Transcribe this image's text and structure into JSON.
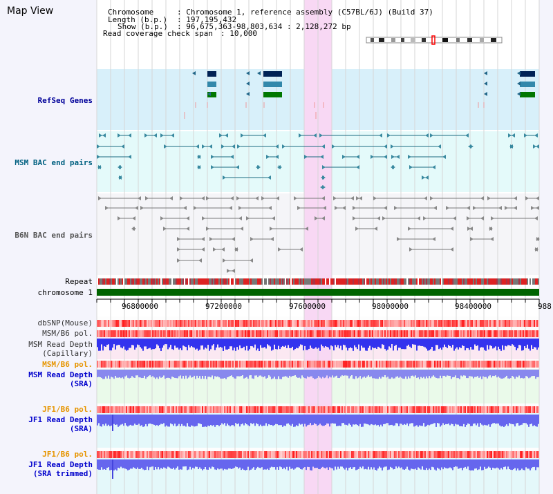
{
  "title": "Map View",
  "header": {
    "chromosome_key": "Chromosome",
    "chromosome_val": ": Chromosome 1, reference assembly (C57BL/6J) (Build 37)",
    "length_key": "Length (b.p.)",
    "length_val": ": 197,195,432",
    "show_key": "Show (b.p.)",
    "show_val": ": 96,675,363-98,803,634 : 2,128,272 bp",
    "coverage_key": "Read coverage check span",
    "coverage_val": ": 10,000"
  },
  "tracks": {
    "refseq": "RefSeq Genes",
    "msm_bac": "MSM BAC end pairs",
    "b6n_bac": "B6N BAC end pairs",
    "repeat": "Repeat",
    "chromosome": "chromosome 1",
    "dbsnp": "dbSNP(Mouse)",
    "msm_b6_pol": "MSM/B6 pol.",
    "msm_depth_l1": "MSM Read Depth",
    "msm_depth_l2": "(Capillary)",
    "msm_b6_pol2": "MSM/B6 pol.",
    "msm_sra_l1": "MSM Read Depth",
    "msm_sra_l2": "(SRA)",
    "jf1_b6_pol": "JF1/B6 pol.",
    "jf1_sra_l1": "JF1 Read Depth",
    "jf1_sra_l2": "(SRA)",
    "jf1_b6_pol2": "JF1/B6 pol.",
    "jf1_trim_l1": "JF1 Read Depth",
    "jf1_trim_l2": "(SRA trimmed)"
  },
  "axis": {
    "ticks": [
      "96800000",
      "97200000",
      "97600000",
      "98000000",
      "98400000",
      "988"
    ]
  },
  "colors": {
    "refseq_bg": "#d8f0fa",
    "msm_bg": "#e4fafa",
    "b6n_bg": "#f5f5f8",
    "highlight": "#f8d8f4",
    "chromosome": "#006400",
    "refseq_label": "#000099",
    "msm_label": "#006080",
    "b6n_label": "#555555",
    "pol_orange": "#e69500",
    "depth_blue": "#0000cc"
  }
}
